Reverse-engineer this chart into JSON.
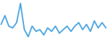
{
  "values": [
    3,
    8,
    2,
    1,
    4,
    15,
    0,
    -4,
    2,
    -1,
    0,
    -3,
    1,
    -1,
    2,
    -2,
    0,
    2,
    -1,
    2,
    4,
    0,
    3,
    -1,
    5,
    1,
    4,
    1
  ],
  "line_color": "#4da6e0",
  "bg_color": "#ffffff",
  "linewidth": 1.1
}
